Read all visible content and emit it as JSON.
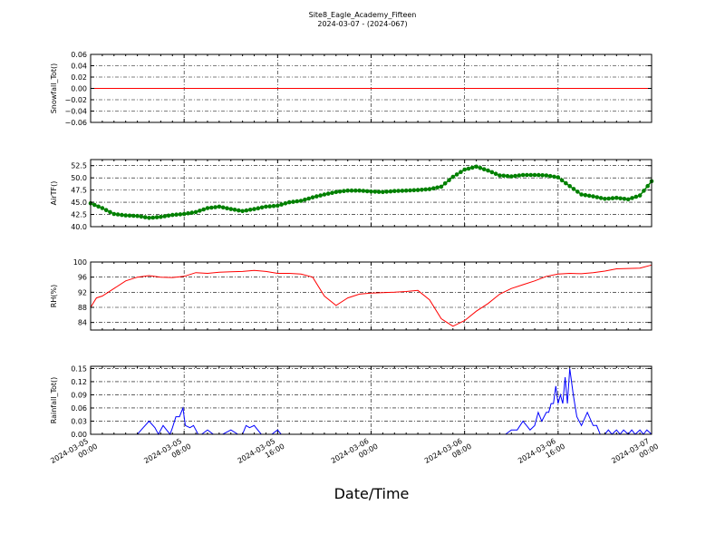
{
  "figure": {
    "title_line1": "Site8_Eagle_Academy_Fifteen",
    "title_line2": "2024-03-07 - (2024-067)",
    "xlabel": "Date/Time",
    "x_tick_labels": [
      [
        "2024-03-05",
        "00:00"
      ],
      [
        "2024-03-05",
        "08:00"
      ],
      [
        "2024-03-05",
        "16:00"
      ],
      [
        "2024-03-06",
        "00:00"
      ],
      [
        "2024-03-06",
        "08:00"
      ],
      [
        "2024-03-06",
        "16:00"
      ],
      [
        "2024-03-07",
        "00:00"
      ]
    ]
  },
  "chart_data": [
    {
      "type": "line",
      "ylabel": "Snowfall_Tot()",
      "color": "#ff0000",
      "marker": "none",
      "grid": true,
      "xlim": [
        "2024-03-05 00:00",
        "2024-03-07 00:00"
      ],
      "ylim": [
        -0.06,
        0.06
      ],
      "yticks": [
        -0.06,
        -0.04,
        -0.02,
        0.0,
        0.02,
        0.04,
        0.06
      ],
      "ytick_labels": [
        "−0.06",
        "−0.04",
        "−0.02",
        "0.00",
        "0.02",
        "0.04",
        "0.06"
      ],
      "x_hours": [
        0,
        48
      ],
      "values": [
        0.0,
        0.0
      ]
    },
    {
      "type": "line",
      "ylabel": "AirTF()",
      "color": "#008000",
      "marker": "circle",
      "grid": true,
      "xlim": [
        "2024-03-05 00:00",
        "2024-03-07 00:00"
      ],
      "ylim": [
        40.0,
        53.75
      ],
      "yticks": [
        40.0,
        42.5,
        45.0,
        47.5,
        50.0,
        52.5
      ],
      "ytick_labels": [
        "40.0",
        "42.5",
        "45.0",
        "47.5",
        "50.0",
        "52.5"
      ],
      "x_hours": [
        0,
        1,
        2,
        3,
        4,
        5,
        6,
        7,
        8,
        9,
        10,
        11,
        12,
        13,
        14,
        15,
        16,
        17,
        18,
        19,
        20,
        21,
        22,
        23,
        24,
        25,
        26,
        27,
        28,
        29,
        30,
        31,
        32,
        33,
        34,
        35,
        36,
        37,
        38,
        39,
        40,
        41,
        42,
        43,
        44,
        45,
        46,
        47,
        48
      ],
      "values": [
        44.8,
        43.8,
        42.6,
        42.3,
        42.2,
        41.8,
        42.0,
        42.4,
        42.6,
        43.0,
        43.8,
        44.1,
        43.6,
        43.2,
        43.6,
        44.1,
        44.3,
        45.0,
        45.3,
        46.0,
        46.6,
        47.1,
        47.4,
        47.4,
        47.2,
        47.1,
        47.3,
        47.4,
        47.5,
        47.7,
        48.2,
        50.2,
        51.7,
        52.3,
        51.5,
        50.5,
        50.3,
        50.6,
        50.6,
        50.5,
        50.1,
        48.3,
        46.6,
        46.2,
        45.7,
        45.9,
        45.6,
        46.4,
        49.3
      ]
    },
    {
      "type": "line",
      "ylabel": "RH(%)",
      "color": "#ff0000",
      "marker": "none",
      "grid": true,
      "xlim": [
        "2024-03-05 00:00",
        "2024-03-07 00:00"
      ],
      "ylim": [
        82.0,
        100.0
      ],
      "yticks": [
        84,
        88,
        92,
        96,
        100
      ],
      "ytick_labels": [
        "84",
        "88",
        "92",
        "96",
        "100"
      ],
      "x_hours": [
        0,
        0.5,
        1,
        2,
        3,
        4,
        5,
        6,
        7,
        8,
        9,
        10,
        11,
        12,
        13,
        14,
        15,
        16,
        17,
        18,
        19,
        20,
        21,
        22,
        23,
        24,
        25,
        26,
        27,
        28,
        29,
        30,
        30.5,
        31,
        32,
        33,
        34,
        35,
        36,
        37,
        38,
        39,
        40,
        41,
        42,
        43,
        44,
        45,
        46,
        47,
        48
      ],
      "values": [
        88.0,
        90.5,
        91.0,
        93.0,
        95.0,
        96.0,
        96.4,
        96.0,
        95.9,
        96.2,
        97.2,
        97.0,
        97.3,
        97.4,
        97.5,
        97.8,
        97.5,
        97.0,
        97.0,
        96.8,
        96.0,
        91.0,
        88.5,
        90.5,
        91.5,
        91.8,
        91.9,
        92.0,
        92.2,
        92.5,
        90.0,
        85.0,
        84.0,
        83.0,
        84.5,
        87.0,
        89.0,
        91.5,
        93.0,
        94.0,
        95.0,
        96.2,
        96.8,
        97.0,
        96.9,
        97.2,
        97.6,
        98.2,
        98.3,
        98.4,
        99.2
      ]
    },
    {
      "type": "line",
      "ylabel": "Rainfall_Tot()",
      "color": "#0000ff",
      "marker": "none",
      "grid": true,
      "xlim": [
        "2024-03-05 00:00",
        "2024-03-07 00:00"
      ],
      "ylim": [
        0.0,
        0.155
      ],
      "yticks": [
        0.0,
        0.03,
        0.06,
        0.09,
        0.12,
        0.15
      ],
      "ytick_labels": [
        "0.00",
        "0.03",
        "0.06",
        "0.09",
        "0.12",
        "0.15"
      ],
      "x_hours": [
        0,
        4,
        4.5,
        5,
        5.5,
        5.8,
        6.2,
        6.5,
        6.8,
        7.0,
        7.3,
        7.6,
        7.9,
        8.1,
        8.5,
        8.8,
        9.0,
        9.2,
        9.5,
        10.0,
        10.5,
        11.0,
        11.3,
        12.0,
        12.6,
        13.0,
        13.3,
        13.6,
        14.0,
        14.3,
        14.6,
        15.0,
        15.5,
        16.0,
        16.3,
        17.0,
        35.5,
        36.0,
        36.5,
        37.0,
        37.3,
        37.6,
        38.0,
        38.3,
        38.6,
        39.0,
        39.2,
        39.4,
        39.6,
        39.8,
        40.0,
        40.2,
        40.4,
        40.6,
        40.8,
        41.0,
        41.3,
        41.6,
        42.0,
        42.5,
        43.0,
        43.3,
        43.6,
        44.0,
        44.3,
        44.6,
        45.0,
        45.3,
        45.6,
        46.0,
        46.3,
        46.6,
        47.0,
        47.3,
        47.6,
        48.0
      ],
      "values": [
        0.0,
        0.0,
        0.015,
        0.03,
        0.015,
        0.0,
        0.02,
        0.01,
        0.0,
        0.015,
        0.04,
        0.04,
        0.06,
        0.02,
        0.015,
        0.02,
        0.01,
        0.0,
        0.0,
        0.01,
        0.0,
        0.0,
        0.0,
        0.01,
        0.0,
        0.0,
        0.02,
        0.015,
        0.02,
        0.01,
        0.0,
        0.0,
        0.0,
        0.01,
        0.0,
        0.0,
        0.0,
        0.01,
        0.01,
        0.03,
        0.02,
        0.01,
        0.02,
        0.05,
        0.03,
        0.05,
        0.05,
        0.07,
        0.07,
        0.11,
        0.07,
        0.09,
        0.07,
        0.13,
        0.07,
        0.15,
        0.09,
        0.04,
        0.02,
        0.05,
        0.02,
        0.02,
        0.0,
        0.0,
        0.01,
        0.0,
        0.01,
        0.0,
        0.01,
        0.0,
        0.01,
        0.0,
        0.01,
        0.0,
        0.01,
        0.0
      ]
    }
  ]
}
